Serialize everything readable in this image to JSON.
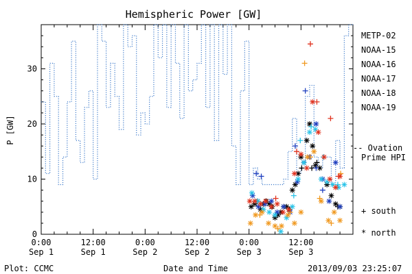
{
  "chart_data": {
    "type": "line",
    "title": "Hemispheric Power [GW]",
    "ylabel": "P [GW]",
    "xlabel": "Date and Time",
    "ylim": [
      0,
      38
    ],
    "xlim": [
      "2013-09-01 00:00",
      "2013-09-04 00:00"
    ],
    "yticks": [
      "0",
      "10",
      "20",
      "30"
    ],
    "yticks_values": [
      0,
      10,
      20,
      30
    ],
    "xticks": [
      {
        "value": "2013-09-01 00:00",
        "time": "0:00",
        "date": "Sep 1"
      },
      {
        "value": "2013-09-01 12:00",
        "time": "12:00",
        "date": "Sep 1"
      },
      {
        "value": "2013-09-02 00:00",
        "time": "0:00",
        "date": "Sep 2"
      },
      {
        "value": "2013-09-02 12:00",
        "time": "12:00",
        "date": "Sep 2"
      },
      {
        "value": "2013-09-03 00:00",
        "time": "0:00",
        "date": "Sep 3"
      },
      {
        "value": "2013-09-03 12:00",
        "time": "12:00",
        "date": "Sep 3"
      }
    ],
    "legend_placement": "right",
    "ovation": {
      "name": "-- Ovation Prime HPI",
      "color": "#3a78c9",
      "x": [
        "2013-09-01 00:00",
        "2013-09-01 01:00",
        "2013-09-01 02:00",
        "2013-09-01 03:00",
        "2013-09-01 04:00",
        "2013-09-01 05:00",
        "2013-09-01 06:00",
        "2013-09-01 07:00",
        "2013-09-01 08:00",
        "2013-09-01 09:00",
        "2013-09-01 10:00",
        "2013-09-01 11:00",
        "2013-09-01 12:00",
        "2013-09-01 13:00",
        "2013-09-01 14:00",
        "2013-09-01 15:00",
        "2013-09-01 16:00",
        "2013-09-01 17:00",
        "2013-09-01 18:00",
        "2013-09-01 19:00",
        "2013-09-01 20:00",
        "2013-09-01 21:00",
        "2013-09-01 22:00",
        "2013-09-01 23:00",
        "2013-09-02 00:00",
        "2013-09-02 01:00",
        "2013-09-02 02:00",
        "2013-09-02 03:00",
        "2013-09-02 04:00",
        "2013-09-02 05:00",
        "2013-09-02 06:00",
        "2013-09-02 07:00",
        "2013-09-02 08:00",
        "2013-09-02 09:00",
        "2013-09-02 10:00",
        "2013-09-02 11:00",
        "2013-09-02 12:00",
        "2013-09-02 13:00",
        "2013-09-02 14:00",
        "2013-09-02 15:00",
        "2013-09-02 16:00",
        "2013-09-02 17:00",
        "2013-09-02 18:00",
        "2013-09-02 19:00",
        "2013-09-02 20:00",
        "2013-09-02 21:00",
        "2013-09-02 22:00",
        "2013-09-02 23:00",
        "2013-09-03 00:00",
        "2013-09-03 01:00",
        "2013-09-03 02:00",
        "2013-09-03 03:00",
        "2013-09-03 04:00",
        "2013-09-03 05:00",
        "2013-09-03 06:00",
        "2013-09-03 07:00",
        "2013-09-03 08:00",
        "2013-09-03 09:00",
        "2013-09-03 10:00",
        "2013-09-03 11:00",
        "2013-09-03 12:00",
        "2013-09-03 13:00",
        "2013-09-03 14:00",
        "2013-09-03 15:00",
        "2013-09-03 16:00",
        "2013-09-03 17:00",
        "2013-09-03 18:00",
        "2013-09-03 19:00",
        "2013-09-03 20:00",
        "2013-09-03 21:00",
        "2013-09-03 22:00",
        "2013-09-03 23:00",
        "2013-09-04 00:00"
      ],
      "values": [
        24,
        11,
        31,
        25,
        9,
        14,
        24,
        35,
        17,
        13,
        23,
        26,
        10,
        38,
        35,
        23,
        31,
        25,
        19,
        38,
        34,
        36,
        18,
        22,
        20,
        25,
        38,
        32,
        38,
        23,
        38,
        31,
        21,
        38,
        26,
        28,
        31,
        38,
        23,
        38,
        17,
        38,
        29,
        38,
        16,
        9,
        26,
        35,
        9,
        12,
        10,
        9,
        9,
        9,
        9,
        9,
        10,
        15,
        21,
        11,
        12,
        25,
        27,
        14,
        12,
        14,
        14,
        9,
        17,
        12,
        36,
        38,
        38
      ]
    },
    "series": [
      {
        "name": "METP-02",
        "color": "#000000",
        "south": {
          "x": [
            "2013-09-03 12:10",
            "2013-09-03 14:30",
            "2013-09-03 15:40",
            "2013-09-03 20:30"
          ],
          "y": [
            12,
            12,
            13,
            5
          ]
        },
        "north": {
          "x": [
            "2013-09-03 00:30",
            "2013-09-03 01:20",
            "2013-09-03 02:00",
            "2013-09-03 02:40",
            "2013-09-03 03:20",
            "2013-09-03 04:00",
            "2013-09-03 04:40",
            "2013-09-03 05:20",
            "2013-09-03 06:00",
            "2013-09-03 06:40",
            "2013-09-03 07:20",
            "2013-09-03 08:00",
            "2013-09-03 08:40",
            "2013-09-03 09:20",
            "2013-09-03 10:00",
            "2013-09-03 10:40",
            "2013-09-03 11:20",
            "2013-09-03 12:00",
            "2013-09-03 12:40",
            "2013-09-03 13:20",
            "2013-09-03 14:00",
            "2013-09-03 14:40",
            "2013-09-03 15:20",
            "2013-09-03 16:20",
            "2013-09-03 18:00",
            "2013-09-03 19:00",
            "2013-09-03 20:00",
            "2013-09-03 21:00"
          ],
          "y": [
            5,
            5.5,
            6,
            4.5,
            5.5,
            6,
            5.5,
            5,
            3,
            3.5,
            4,
            5,
            5,
            4.5,
            8,
            9,
            11,
            14,
            13,
            17,
            20,
            16,
            12.5,
            12,
            9,
            7,
            5.5,
            5
          ]
        }
      },
      {
        "name": "NOAA-15",
        "color": "#1f3fbf",
        "south": {
          "x": [
            "2013-09-03 01:40",
            "2013-09-03 02:50",
            "2013-09-03 10:40",
            "2013-09-03 13:00",
            "2013-09-03 15:30",
            "2013-09-03 17:00"
          ],
          "y": [
            11,
            10.5,
            16,
            26,
            12,
            8
          ]
        },
        "north": {
          "x": [
            "2013-09-03 00:50",
            "2013-09-03 02:10",
            "2013-09-03 03:40",
            "2013-09-03 05:10",
            "2013-09-03 06:30",
            "2013-09-03 08:00",
            "2013-09-03 09:30",
            "2013-09-03 11:10",
            "2013-09-03 12:40",
            "2013-09-03 14:00",
            "2013-09-03 15:30",
            "2013-09-03 17:00",
            "2013-09-03 18:30",
            "2013-09-03 20:00",
            "2013-09-03 21:00"
          ],
          "y": [
            7,
            5,
            5.5,
            6,
            4,
            5,
            4,
            9.5,
            13,
            14,
            20,
            10,
            6,
            13,
            5
          ]
        }
      },
      {
        "name": "NOAA-16",
        "color": "#29c3e8",
        "south": {
          "x": [
            "2013-09-03 10:20",
            "2013-09-03 11:50",
            "2013-09-03 14:20",
            "2013-09-03 17:10",
            "2013-09-03 20:30"
          ],
          "y": [
            7,
            17,
            19.5,
            14,
            9
          ]
        },
        "north": {
          "x": [
            "2013-09-03 00:40",
            "2013-09-03 02:00",
            "2013-09-03 03:20",
            "2013-09-03 04:40",
            "2013-09-03 06:00",
            "2013-09-03 07:20",
            "2013-09-03 08:40",
            "2013-09-03 10:00",
            "2013-09-03 11:20",
            "2013-09-03 12:40",
            "2013-09-03 14:00",
            "2013-09-03 15:20",
            "2013-09-03 16:40",
            "2013-09-03 18:00",
            "2013-09-03 19:20",
            "2013-09-03 20:40",
            "2013-09-03 22:00"
          ],
          "y": [
            7.5,
            6,
            4.5,
            4,
            3.5,
            0.5,
            3,
            5,
            10,
            13,
            18.5,
            19,
            10,
            9.5,
            9,
            8.5,
            9
          ]
        }
      },
      {
        "name": "NOAA-17",
        "color": "#2fdc70",
        "south": {
          "x": [],
          "y": []
        },
        "north": {
          "x": [],
          "y": []
        }
      },
      {
        "name": "NOAA-18",
        "color": "#f0981e",
        "south": {
          "x": [
            "2013-09-03 02:30",
            "2013-09-03 06:40",
            "2013-09-03 09:30",
            "2013-09-03 12:50",
            "2013-09-03 14:10",
            "2013-09-03 16:20",
            "2013-09-03 19:00",
            "2013-09-03 21:10"
          ],
          "y": [
            3.5,
            1,
            4,
            31,
            14,
            6.5,
            2,
            11
          ]
        },
        "north": {
          "x": [
            "2013-09-03 00:20",
            "2013-09-03 01:30",
            "2013-09-03 03:00",
            "2013-09-03 04:30",
            "2013-09-03 06:00",
            "2013-09-03 07:30",
            "2013-09-03 09:00",
            "2013-09-03 10:30",
            "2013-09-03 12:00",
            "2013-09-03 13:30",
            "2013-09-03 15:00",
            "2013-09-03 16:40",
            "2013-09-03 18:20",
            "2013-09-03 19:40",
            "2013-09-03 21:00"
          ],
          "y": [
            2,
            3.5,
            4,
            2,
            1.5,
            1.5,
            3.5,
            2,
            4,
            14,
            15,
            6,
            2.5,
            4,
            2.5
          ]
        }
      },
      {
        "name": "NOAA-19",
        "color": "#e0321e",
        "south": {
          "x": [
            "2013-09-03 06:10",
            "2013-09-03 11:00",
            "2013-09-03 14:10",
            "2013-09-03 15:40",
            "2013-09-03 18:50",
            "2013-09-03 20:40"
          ],
          "y": [
            6.5,
            15,
            34.5,
            24,
            21,
            10.5
          ]
        },
        "north": {
          "x": [
            "2013-09-03 00:10",
            "2013-09-03 01:20",
            "2013-09-03 02:40",
            "2013-09-03 03:50",
            "2013-09-03 05:10",
            "2013-09-03 06:30",
            "2013-09-03 07:50",
            "2013-09-03 09:10",
            "2013-09-03 10:30",
            "2013-09-03 12:00",
            "2013-09-03 13:20",
            "2013-09-03 14:40",
            "2013-09-03 16:00",
            "2013-09-03 17:20",
            "2013-09-03 18:40",
            "2013-09-03 20:00",
            "2013-09-03 21:00"
          ],
          "y": [
            6,
            6,
            5.5,
            6,
            5,
            5.5,
            4,
            4.5,
            11,
            14.5,
            12,
            24,
            18.5,
            14,
            10,
            8.5,
            10.5
          ]
        }
      }
    ],
    "symbols": {
      "south": "+",
      "north": "*"
    },
    "legend_symbols": [
      {
        "symbol": "+",
        "label": "south"
      },
      {
        "symbol": "*",
        "label": "north"
      }
    ]
  },
  "footer": {
    "plot_credit": "Plot: CCMC",
    "timestamp": "2013/09/03 23:25:07"
  }
}
